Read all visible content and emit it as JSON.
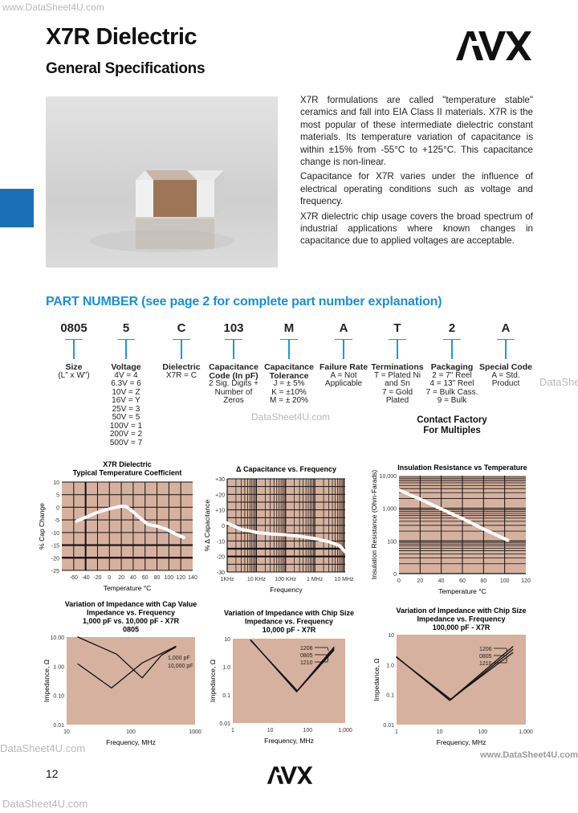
{
  "header": {
    "title": "X7R Dielectric",
    "subtitle": "General Specifications",
    "logo": "AVX"
  },
  "watermarks": {
    "top_left": "www.DataSheet4U.com",
    "right": "DataShee",
    "center": "DataSheet4U.com",
    "left_bottom": "DataSheet4U.com",
    "right_bottom": "www.DataSheet4U.com",
    "bottom": "DataSheet4U.com"
  },
  "intro": [
    "X7R formulations are called \"temperature stable\" ceramics and fall into EIA Class II materials. X7R is the most popular of these intermediate dielectric constant materials. Its temperature variation of capacitance is within ±15% from -55°C to +125°C. This capacitance change is non-linear.",
    "Capacitance for X7R varies under the influence of electrical operating conditions such as voltage and frequency.",
    "X7R dielectric chip usage covers the broad spectrum of industrial applications where known changes in capacitance due to applied voltages are acceptable."
  ],
  "part_number": {
    "heading": "PART NUMBER (see page 2 for complete part number explanation)",
    "fields": [
      {
        "code": "0805",
        "label": "Size",
        "lines": [
          "(L\" x W\")"
        ]
      },
      {
        "code": "5",
        "label": "Voltage",
        "lines": [
          "4V = 4",
          "6.3V = 6",
          "10V = Z",
          "16V = Y",
          "25V = 3",
          "50V = 5",
          "100V = 1",
          "200V = 2",
          "500V = 7"
        ]
      },
      {
        "code": "C",
        "label": "Dielectric",
        "lines": [
          "X7R = C"
        ]
      },
      {
        "code": "103",
        "label": "Capacitance Code (In pF)",
        "lines": [
          "2 Sig. Digits +",
          "Number of",
          "Zeros"
        ]
      },
      {
        "code": "M",
        "label": "Capacitance Tolerance",
        "lines": [
          "J = ± 5%",
          "K = ±10%",
          "M = ± 20%"
        ]
      },
      {
        "code": "A",
        "label": "Failure Rate",
        "lines": [
          "A = Not",
          "Applicable"
        ]
      },
      {
        "code": "T",
        "label": "Terminations",
        "lines": [
          "T = Plated Ni",
          "and Sn",
          "7 = Gold",
          "Plated"
        ]
      },
      {
        "code": "2",
        "label": "Packaging",
        "lines": [
          "2 = 7\" Reel",
          "4 = 13\" Reel",
          "7 = Bulk Cass.",
          "9 = Bulk"
        ]
      },
      {
        "code": "A",
        "label": "Special Code",
        "lines": [
          "A = Std.",
          "Product"
        ]
      }
    ],
    "contact_note": "Contact Factory For Multiples"
  },
  "chart_data": [
    {
      "type": "line",
      "title": [
        "X7R Dielectric",
        "Typical Temperature Coefficient"
      ],
      "xlabel": "Temperature °C",
      "ylabel": "% Cap Change",
      "xscale": "linear",
      "yscale": "linear",
      "xlim": [
        -80,
        140
      ],
      "ylim": [
        -25,
        10
      ],
      "xticks": [
        [
          -60,
          "-60"
        ],
        [
          -40,
          "-40"
        ],
        [
          -20,
          "-20"
        ],
        [
          0,
          "0"
        ],
        [
          20,
          "20"
        ],
        [
          40,
          "40"
        ],
        [
          60,
          "60"
        ],
        [
          80,
          "80"
        ],
        [
          100,
          "100"
        ],
        [
          120,
          "120"
        ],
        [
          140,
          "140"
        ]
      ],
      "yticks": [
        [
          10,
          "10"
        ],
        [
          5,
          "5"
        ],
        [
          0,
          "0"
        ],
        [
          -5,
          "-5"
        ],
        [
          -10,
          "-10"
        ],
        [
          -15,
          "-15"
        ],
        [
          -20,
          "-20"
        ],
        [
          -25,
          "-25"
        ]
      ],
      "series": [
        {
          "color": "#ffffff",
          "points": [
            [
              -55,
              -5.5
            ],
            [
              -40,
              -4
            ],
            [
              -20,
              -2
            ],
            [
              0,
              -0.6
            ],
            [
              20,
              0.4
            ],
            [
              28,
              0.3
            ],
            [
              40,
              -1.8
            ],
            [
              55,
              -5
            ],
            [
              65,
              -6.8
            ],
            [
              80,
              -7.5
            ],
            [
              95,
              -8.6
            ],
            [
              110,
              -10.5
            ],
            [
              125,
              -12
            ]
          ]
        }
      ],
      "grid": true
    },
    {
      "type": "line",
      "title": [
        "Δ Capacitance vs. Frequency"
      ],
      "xlabel": "Frequency",
      "ylabel": "% Δ Capacitance",
      "xscale": "log",
      "yscale": "linear",
      "xlim": [
        1000,
        11000000
      ],
      "ylim": [
        -30,
        30
      ],
      "xticks": [
        [
          1000,
          "1KHz"
        ],
        [
          10000,
          "10 KHz"
        ],
        [
          100000,
          "100 KHz"
        ],
        [
          1000000,
          "1 MHz"
        ],
        [
          10000000,
          "10 MHz"
        ]
      ],
      "yticks": [
        [
          30,
          "+30"
        ],
        [
          20,
          "+20"
        ],
        [
          10,
          "+10"
        ],
        [
          0,
          "0"
        ],
        [
          -10,
          "-10"
        ],
        [
          -20,
          "-20"
        ],
        [
          -30,
          "-30"
        ]
      ],
      "series": [
        {
          "color": "#ffffff",
          "points": [
            [
              1000,
              1.5
            ],
            [
              3000,
              -2.5
            ],
            [
              10000,
              -4.5
            ],
            [
              30000,
              -5.5
            ],
            [
              100000,
              -6
            ],
            [
              300000,
              -7
            ],
            [
              1000000,
              -8.5
            ],
            [
              3000000,
              -10.5
            ],
            [
              7000000,
              -13
            ],
            [
              11000000,
              -17
            ]
          ]
        }
      ],
      "grid": true
    },
    {
      "type": "line",
      "title": [
        "Insulation Resistance vs Temperature"
      ],
      "xlabel": "Temperature °C",
      "ylabel": "Insulation Resistance (Ohm-Farads)",
      "xscale": "linear",
      "yscale": "log",
      "xlim": [
        0,
        120
      ],
      "ylim": [
        10,
        10000
      ],
      "xticks": [
        [
          0,
          "0"
        ],
        [
          20,
          "20"
        ],
        [
          40,
          "40"
        ],
        [
          60,
          "60"
        ],
        [
          80,
          "80"
        ],
        [
          100,
          "100"
        ],
        [
          120,
          "120"
        ]
      ],
      "yticks": [
        [
          10000,
          "10,000"
        ],
        [
          1000,
          "1,000"
        ],
        [
          100,
          "100"
        ],
        [
          10,
          "0"
        ]
      ],
      "series": [
        {
          "color": "#ffffff",
          "points": [
            [
              0,
              3600
            ],
            [
              20,
              1900
            ],
            [
              40,
              950
            ],
            [
              60,
              480
            ],
            [
              80,
              230
            ],
            [
              103,
              105
            ]
          ]
        }
      ],
      "grid": true
    },
    {
      "type": "line",
      "title": [
        "Variation of Impedance with Cap Value",
        "Impedance vs. Frequency",
        "1,000 pF vs. 10,000 pF - X7R",
        "0805"
      ],
      "xlabel": "Frequency, MHz",
      "ylabel": "Impedance, Ω",
      "xscale": "log",
      "yscale": "log",
      "xlim": [
        10,
        1000
      ],
      "ylim": [
        0.01,
        10
      ],
      "xticks": [
        [
          10,
          "10"
        ],
        [
          100,
          "100"
        ],
        [
          1000,
          "1000"
        ]
      ],
      "yticks": [
        [
          10,
          "10.00"
        ],
        [
          1,
          "1.00"
        ],
        [
          0.1,
          "0.10"
        ],
        [
          0.01,
          "0.01"
        ]
      ],
      "series": [
        {
          "name": "1,000 pF",
          "color": "#111111",
          "points": [
            [
              15,
              10
            ],
            [
              60,
              2.6
            ],
            [
              150,
              0.4
            ],
            [
              300,
              2.4
            ],
            [
              500,
              4.5
            ]
          ]
        },
        {
          "name": "10,000 pF",
          "color": "#111111",
          "points": [
            [
              15,
              1.2
            ],
            [
              50,
              0.18
            ],
            [
              150,
              1.3
            ],
            [
              500,
              4.8
            ]
          ]
        }
      ],
      "grid": false
    },
    {
      "type": "line",
      "title": [
        "Variation of Impedance with Chip Size",
        "Impedance vs. Frequency",
        "10,000 pF - X7R"
      ],
      "xlabel": "Frequency, MHz",
      "ylabel": "Impedance, Ω",
      "xscale": "log",
      "yscale": "log",
      "xlim": [
        1,
        1000
      ],
      "ylim": [
        0.01,
        10
      ],
      "xticks": [
        [
          1,
          "1"
        ],
        [
          10,
          "10"
        ],
        [
          100,
          "100"
        ],
        [
          1000,
          "1,000"
        ]
      ],
      "yticks": [
        [
          10,
          "10"
        ],
        [
          1,
          "1.0"
        ],
        [
          0.1,
          "0.1"
        ],
        [
          0.01,
          "0.01"
        ]
      ],
      "series": [
        {
          "name": "1206",
          "color": "#111111",
          "points": [
            [
              3,
              9
            ],
            [
              50,
              0.13
            ],
            [
              500,
              5
            ]
          ]
        },
        {
          "name": "0805",
          "color": "#111111",
          "points": [
            [
              3,
              9
            ],
            [
              51,
              0.13
            ],
            [
              500,
              4.4
            ]
          ]
        },
        {
          "name": "1210",
          "color": "#111111",
          "points": [
            [
              3,
              8.6
            ],
            [
              53,
              0.14
            ],
            [
              500,
              3.9
            ]
          ]
        }
      ],
      "grid": false
    },
    {
      "type": "line",
      "title": [
        "Variation of Impedance with Chip Size",
        "Impedance vs. Frequency",
        "100,000 pF - X7R"
      ],
      "xlabel": "Frequency, MHz",
      "ylabel": "Impedance, Ω",
      "xscale": "log",
      "yscale": "log",
      "xlim": [
        1,
        1000
      ],
      "ylim": [
        0.01,
        10
      ],
      "xticks": [
        [
          1,
          "1"
        ],
        [
          10,
          "10"
        ],
        [
          100,
          "100"
        ],
        [
          1000,
          "1,000"
        ]
      ],
      "yticks": [
        [
          10,
          "10"
        ],
        [
          1,
          "1.0"
        ],
        [
          0.1,
          "0.1"
        ],
        [
          0.01,
          "0.01"
        ]
      ],
      "series": [
        {
          "name": "1206",
          "color": "#111111",
          "points": [
            [
              1,
              1.8
            ],
            [
              17,
              0.065
            ],
            [
              500,
              4
            ]
          ]
        },
        {
          "name": "0805",
          "color": "#111111",
          "points": [
            [
              1,
              1.8
            ],
            [
              17.5,
              0.065
            ],
            [
              500,
              3.2
            ]
          ]
        },
        {
          "name": "1210",
          "color": "#111111",
          "points": [
            [
              1,
              1.75
            ],
            [
              18,
              0.07
            ],
            [
              500,
              2.5
            ]
          ]
        }
      ],
      "grid": false
    }
  ],
  "colors": {
    "accent": "#1a8fd6",
    "tab": "#1a6fb5",
    "plot_bg": "#d6b19f"
  },
  "footer": {
    "page_number": "12",
    "logo": "AVX"
  }
}
